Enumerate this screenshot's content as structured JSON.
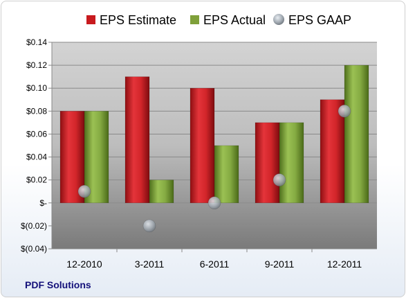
{
  "colors": {
    "estimate": "#c81a1e",
    "actual": "#7fa03a",
    "gaap": "#9aa3ac",
    "plot_top": "#c9c9c9",
    "plot_bottom": "#7e7e7e",
    "company_text": "#13107a"
  },
  "company": "PDF Solutions",
  "chart_data": {
    "type": "bar",
    "title": "",
    "xlabel": "",
    "ylabel": "",
    "categories": [
      "12-2010",
      "3-2011",
      "6-2011",
      "9-2011",
      "12-2011"
    ],
    "series": [
      {
        "name": "EPS Estimate",
        "kind": "bar",
        "values": [
          0.08,
          0.11,
          0.1,
          0.07,
          0.09
        ]
      },
      {
        "name": "EPS Actual",
        "kind": "bar",
        "values": [
          0.08,
          0.02,
          0.05,
          0.07,
          0.12
        ]
      },
      {
        "name": "EPS GAAP",
        "kind": "marker",
        "values": [
          0.01,
          -0.02,
          0.0,
          0.02,
          0.08
        ]
      }
    ],
    "ylim": [
      -0.04,
      0.14
    ],
    "yticks": [
      {
        "value": 0.14,
        "label": "$0.14"
      },
      {
        "value": 0.12,
        "label": "$0.12"
      },
      {
        "value": 0.1,
        "label": "$0.10"
      },
      {
        "value": 0.08,
        "label": "$0.08"
      },
      {
        "value": 0.06,
        "label": "$0.06"
      },
      {
        "value": 0.04,
        "label": "$0.04"
      },
      {
        "value": 0.02,
        "label": "$0.02"
      },
      {
        "value": 0.0,
        "label": "$-"
      },
      {
        "value": -0.02,
        "label": "$(0.02)"
      },
      {
        "value": -0.04,
        "label": "$(0.04)"
      }
    ],
    "grid": true,
    "legend": "top"
  }
}
